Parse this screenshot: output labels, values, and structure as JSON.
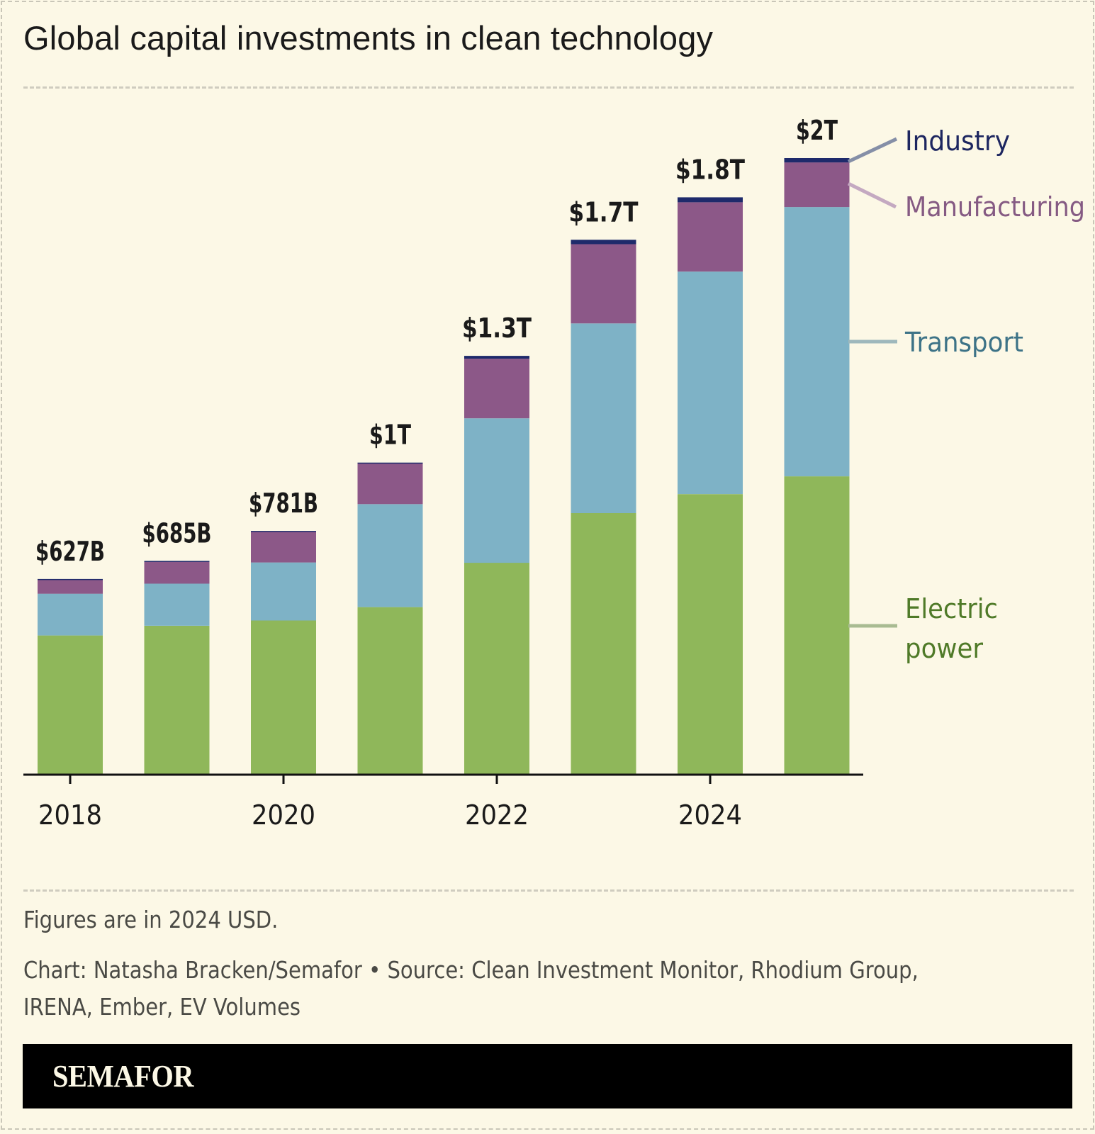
{
  "title": "Global capital investments in clean technology",
  "notes": {
    "units": "Figures are in 2024 USD.",
    "credit_line1": "Chart: Natasha Bracken/Semafor • Source: Clean Investment Monitor, Rhodium Group,",
    "credit_line2": "IRENA, Ember, EV Volumes"
  },
  "brand": "SEMAFOR",
  "colors": {
    "background": "#fcf8e6",
    "electric_power": "#8fb75a",
    "transport": "#7eb2c6",
    "manufacturing": "#8c5888",
    "industry": "#1e2a6b",
    "label_electric": "#4f7a28",
    "label_transport": "#3d7387",
    "label_manufacturing": "#855a83",
    "label_industry": "#1d2660",
    "leader_electric": "#a9bb92",
    "leader_transport": "#9eb8bc",
    "leader_manufacturing": "#c4a9c1",
    "leader_industry": "#858fa7"
  },
  "chart_data": {
    "type": "bar",
    "stacked": true,
    "title": "Global capital investments in clean technology",
    "xlabel": "",
    "ylabel": "",
    "units": "billion 2024 USD",
    "categories": [
      "2018",
      "2019",
      "2020",
      "2021",
      "2022",
      "2023",
      "2024",
      "2025"
    ],
    "x_tick_labels": [
      "2018",
      "2020",
      "2022",
      "2024"
    ],
    "ylim": [
      0,
      2000
    ],
    "grid": false,
    "legend": "right (direct labels)",
    "series": [
      {
        "name": "Electric power",
        "key": "electric_power",
        "values": [
          446,
          477,
          494,
          537,
          679,
          838,
          899,
          956
        ]
      },
      {
        "name": "Transport",
        "key": "transport",
        "values": [
          134,
          135,
          186,
          330,
          463,
          608,
          713,
          863
        ]
      },
      {
        "name": "Manufacturing",
        "key": "manufacturing",
        "values": [
          46,
          72,
          100,
          131,
          191,
          254,
          222,
          143
        ]
      },
      {
        "name": "Industry",
        "key": "industry",
        "values": [
          1,
          1,
          1,
          2,
          9,
          14,
          16,
          14
        ]
      }
    ],
    "totals": [
      627,
      685,
      781,
      1000,
      1342,
      1714,
      1850,
      1976
    ],
    "total_labels": [
      "$627B",
      "$685B",
      "$781B",
      "$1T",
      "$1.3T",
      "$1.7T",
      "$1.8T",
      "$2T"
    ],
    "legend_labels": {
      "industry": "Industry",
      "manufacturing": "Manufacturing",
      "transport": "Transport",
      "electric_power_line1": "Electric",
      "electric_power_line2": "power"
    }
  }
}
